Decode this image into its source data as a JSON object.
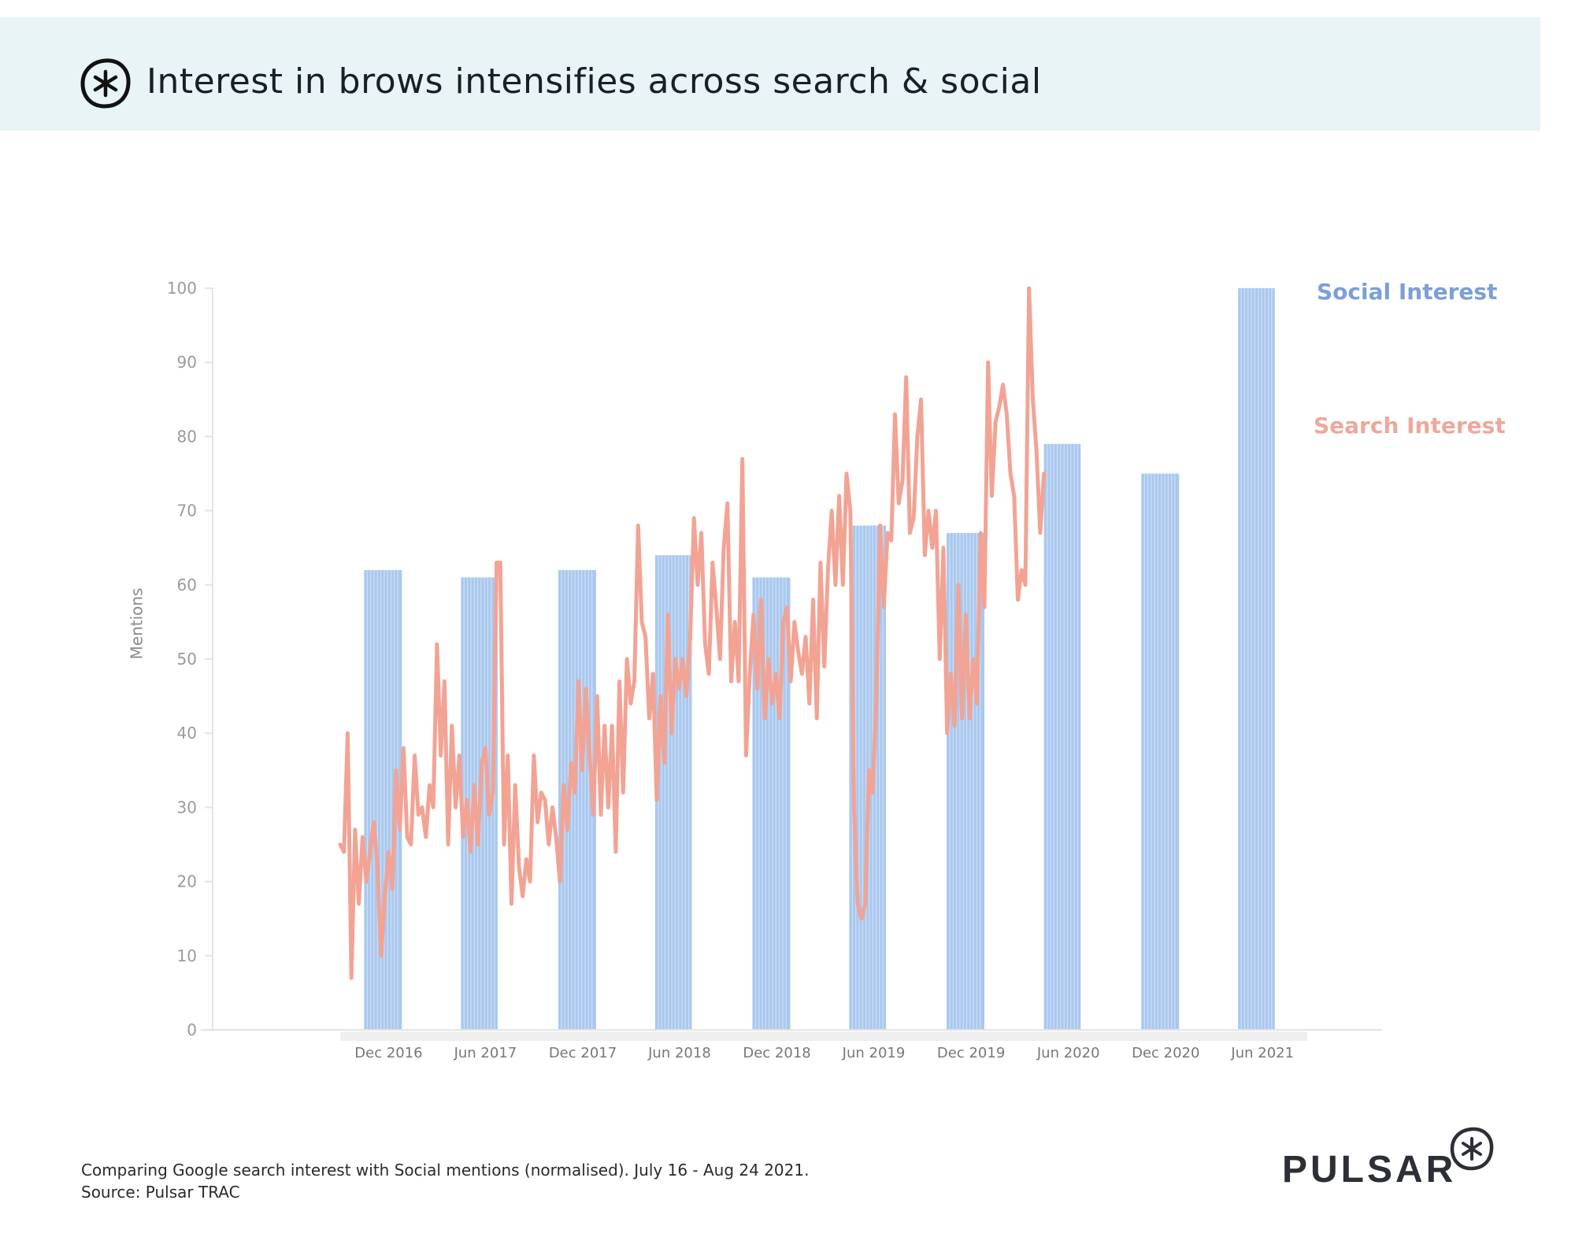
{
  "header": {
    "title": "Interest in brows intensifies across search & social",
    "logo_icon": "asterisk-circle-logo-icon"
  },
  "footer": {
    "note_line1": "Comparing Google search interest with Social mentions (normalised). July 16 - Aug 24 2021.",
    "note_line2": "Source: Pulsar TRAC",
    "brand": "PULSAR"
  },
  "colors": {
    "header_bg": "#e8f4f6",
    "social": "#a9c8ef",
    "social_label": "#7b9fd6",
    "search": "#f2a394",
    "axis_text": "#9a9a9a"
  },
  "chart_data": {
    "type": "bar",
    "ylabel": "Mentions",
    "ylim": [
      0,
      100
    ],
    "yticks": [
      "0",
      "10",
      "20",
      "30",
      "40",
      "50",
      "60",
      "70",
      "80",
      "90",
      "100"
    ],
    "x_range": [
      "2016-09-01",
      "2021-08-24"
    ],
    "x_tick_labels": [
      {
        "date": "2016-12-01",
        "label": "Dec 2016"
      },
      {
        "date": "2017-06-01",
        "label": "Jun 2017"
      },
      {
        "date": "2017-12-01",
        "label": "Dec 2017"
      },
      {
        "date": "2018-06-01",
        "label": "Jun 2018"
      },
      {
        "date": "2018-12-01",
        "label": "Dec 2018"
      },
      {
        "date": "2019-06-01",
        "label": "Jun 2019"
      },
      {
        "date": "2019-12-01",
        "label": "Dec 2019"
      },
      {
        "date": "2020-06-01",
        "label": "Jun 2020"
      },
      {
        "date": "2020-12-01",
        "label": "Dec 2020"
      },
      {
        "date": "2021-06-01",
        "label": "Jun 2021"
      }
    ],
    "legend_position": "top-right",
    "grid": false,
    "series": [
      {
        "name": "Social Interest",
        "type": "bar",
        "periods": [
          {
            "start": "2016-10-16",
            "end": "2016-12-26",
            "value": 62
          },
          {
            "start": "2017-04-16",
            "end": "2017-06-24",
            "value": 61
          },
          {
            "start": "2017-10-16",
            "end": "2017-12-26",
            "value": 62
          },
          {
            "start": "2018-04-16",
            "end": "2018-06-24",
            "value": 64
          },
          {
            "start": "2018-10-16",
            "end": "2018-12-26",
            "value": 61
          },
          {
            "start": "2019-04-16",
            "end": "2019-06-24",
            "value": 68
          },
          {
            "start": "2019-10-16",
            "end": "2019-12-26",
            "value": 67
          },
          {
            "start": "2020-04-16",
            "end": "2020-06-24",
            "value": 79
          },
          {
            "start": "2020-10-16",
            "end": "2020-12-26",
            "value": 75
          },
          {
            "start": "2021-04-16",
            "end": "2021-06-24",
            "value": 100
          }
        ]
      },
      {
        "name": "Search Interest",
        "type": "line",
        "points": [
          [
            "2016-09-01",
            25
          ],
          [
            "2016-09-08",
            24
          ],
          [
            "2016-09-15",
            40
          ],
          [
            "2016-09-22",
            7
          ],
          [
            "2016-09-29",
            27
          ],
          [
            "2016-10-06",
            17
          ],
          [
            "2016-10-13",
            26
          ],
          [
            "2016-10-20",
            20
          ],
          [
            "2016-10-27",
            24
          ],
          [
            "2016-11-03",
            28
          ],
          [
            "2016-11-10",
            22
          ],
          [
            "2016-11-17",
            10
          ],
          [
            "2016-11-24",
            18
          ],
          [
            "2016-12-01",
            24
          ],
          [
            "2016-12-08",
            19
          ],
          [
            "2016-12-15",
            35
          ],
          [
            "2016-12-22",
            27
          ],
          [
            "2016-12-29",
            38
          ],
          [
            "2017-01-05",
            26
          ],
          [
            "2017-01-12",
            25
          ],
          [
            "2017-01-19",
            37
          ],
          [
            "2017-01-26",
            29
          ],
          [
            "2017-02-02",
            30
          ],
          [
            "2017-02-09",
            26
          ],
          [
            "2017-02-16",
            33
          ],
          [
            "2017-02-23",
            30
          ],
          [
            "2017-03-02",
            52
          ],
          [
            "2017-03-09",
            37
          ],
          [
            "2017-03-16",
            47
          ],
          [
            "2017-03-23",
            25
          ],
          [
            "2017-03-30",
            41
          ],
          [
            "2017-04-06",
            30
          ],
          [
            "2017-04-13",
            37
          ],
          [
            "2017-04-20",
            26
          ],
          [
            "2017-04-27",
            31
          ],
          [
            "2017-05-04",
            24
          ],
          [
            "2017-05-11",
            33
          ],
          [
            "2017-05-18",
            25
          ],
          [
            "2017-05-25",
            36
          ],
          [
            "2017-06-01",
            38
          ],
          [
            "2017-06-08",
            29
          ],
          [
            "2017-06-15",
            32
          ],
          [
            "2017-06-22",
            63
          ],
          [
            "2017-06-29",
            63
          ],
          [
            "2017-07-06",
            25
          ],
          [
            "2017-07-13",
            37
          ],
          [
            "2017-07-20",
            17
          ],
          [
            "2017-07-27",
            33
          ],
          [
            "2017-08-03",
            22
          ],
          [
            "2017-08-10",
            18
          ],
          [
            "2017-08-17",
            23
          ],
          [
            "2017-08-24",
            20
          ],
          [
            "2017-08-31",
            37
          ],
          [
            "2017-09-07",
            28
          ],
          [
            "2017-09-14",
            32
          ],
          [
            "2017-09-21",
            31
          ],
          [
            "2017-09-28",
            25
          ],
          [
            "2017-10-05",
            30
          ],
          [
            "2017-10-12",
            26
          ],
          [
            "2017-10-19",
            20
          ],
          [
            "2017-10-26",
            33
          ],
          [
            "2017-11-02",
            27
          ],
          [
            "2017-11-09",
            36
          ],
          [
            "2017-11-16",
            32
          ],
          [
            "2017-11-23",
            47
          ],
          [
            "2017-11-30",
            35
          ],
          [
            "2017-12-07",
            46
          ],
          [
            "2017-12-14",
            37
          ],
          [
            "2017-12-21",
            29
          ],
          [
            "2017-12-28",
            45
          ],
          [
            "2018-01-04",
            29
          ],
          [
            "2018-01-11",
            41
          ],
          [
            "2018-01-18",
            30
          ],
          [
            "2018-01-25",
            41
          ],
          [
            "2018-02-01",
            24
          ],
          [
            "2018-02-08",
            47
          ],
          [
            "2018-02-15",
            32
          ],
          [
            "2018-02-22",
            50
          ],
          [
            "2018-03-01",
            44
          ],
          [
            "2018-03-08",
            47
          ],
          [
            "2018-03-15",
            68
          ],
          [
            "2018-03-22",
            55
          ],
          [
            "2018-03-29",
            53
          ],
          [
            "2018-04-05",
            42
          ],
          [
            "2018-04-12",
            48
          ],
          [
            "2018-04-19",
            31
          ],
          [
            "2018-04-26",
            45
          ],
          [
            "2018-05-03",
            36
          ],
          [
            "2018-05-10",
            56
          ],
          [
            "2018-05-17",
            40
          ],
          [
            "2018-05-24",
            50
          ],
          [
            "2018-05-31",
            46
          ],
          [
            "2018-06-07",
            50
          ],
          [
            "2018-06-14",
            45
          ],
          [
            "2018-06-21",
            53
          ],
          [
            "2018-06-28",
            69
          ],
          [
            "2018-07-05",
            60
          ],
          [
            "2018-07-12",
            67
          ],
          [
            "2018-07-19",
            52
          ],
          [
            "2018-07-26",
            48
          ],
          [
            "2018-08-02",
            63
          ],
          [
            "2018-08-09",
            57
          ],
          [
            "2018-08-16",
            50
          ],
          [
            "2018-08-23",
            65
          ],
          [
            "2018-08-30",
            71
          ],
          [
            "2018-09-06",
            47
          ],
          [
            "2018-09-13",
            55
          ],
          [
            "2018-09-20",
            47
          ],
          [
            "2018-09-27",
            77
          ],
          [
            "2018-10-04",
            37
          ],
          [
            "2018-10-11",
            48
          ],
          [
            "2018-10-18",
            56
          ],
          [
            "2018-10-25",
            46
          ],
          [
            "2018-11-01",
            58
          ],
          [
            "2018-11-08",
            42
          ],
          [
            "2018-11-15",
            50
          ],
          [
            "2018-11-22",
            44
          ],
          [
            "2018-11-29",
            48
          ],
          [
            "2018-12-06",
            42
          ],
          [
            "2018-12-13",
            55
          ],
          [
            "2018-12-20",
            57
          ],
          [
            "2018-12-27",
            47
          ],
          [
            "2019-01-03",
            55
          ],
          [
            "2019-01-10",
            51
          ],
          [
            "2019-01-17",
            48
          ],
          [
            "2019-01-24",
            53
          ],
          [
            "2019-01-31",
            44
          ],
          [
            "2019-02-07",
            58
          ],
          [
            "2019-02-14",
            42
          ],
          [
            "2019-02-21",
            63
          ],
          [
            "2019-02-28",
            49
          ],
          [
            "2019-03-07",
            62
          ],
          [
            "2019-03-14",
            70
          ],
          [
            "2019-03-21",
            60
          ],
          [
            "2019-03-28",
            72
          ],
          [
            "2019-04-04",
            60
          ],
          [
            "2019-04-11",
            75
          ],
          [
            "2019-04-18",
            70
          ],
          [
            "2019-04-25",
            30
          ],
          [
            "2019-05-02",
            17
          ],
          [
            "2019-05-09",
            15
          ],
          [
            "2019-05-16",
            17
          ],
          [
            "2019-05-23",
            35
          ],
          [
            "2019-05-30",
            32
          ],
          [
            "2019-06-06",
            45
          ],
          [
            "2019-06-13",
            68
          ],
          [
            "2019-06-20",
            57
          ],
          [
            "2019-06-27",
            67
          ],
          [
            "2019-07-04",
            66
          ],
          [
            "2019-07-11",
            83
          ],
          [
            "2019-07-18",
            71
          ],
          [
            "2019-07-25",
            74
          ],
          [
            "2019-08-01",
            88
          ],
          [
            "2019-08-08",
            67
          ],
          [
            "2019-08-15",
            69
          ],
          [
            "2019-08-22",
            80
          ],
          [
            "2019-08-29",
            85
          ],
          [
            "2019-09-05",
            64
          ],
          [
            "2019-09-12",
            70
          ],
          [
            "2019-09-19",
            65
          ],
          [
            "2019-09-26",
            70
          ],
          [
            "2019-10-03",
            50
          ],
          [
            "2019-10-10",
            65
          ],
          [
            "2019-10-17",
            40
          ],
          [
            "2019-10-24",
            48
          ],
          [
            "2019-10-31",
            41
          ],
          [
            "2019-11-07",
            60
          ],
          [
            "2019-11-14",
            42
          ],
          [
            "2019-11-21",
            56
          ],
          [
            "2019-11-28",
            42
          ],
          [
            "2019-12-05",
            50
          ],
          [
            "2019-12-12",
            44
          ],
          [
            "2019-12-19",
            67
          ],
          [
            "2019-12-26",
            57
          ],
          [
            "2020-01-02",
            90
          ],
          [
            "2020-01-09",
            72
          ],
          [
            "2020-01-16",
            82
          ],
          [
            "2020-01-23",
            84
          ],
          [
            "2020-01-30",
            87
          ],
          [
            "2020-02-06",
            83
          ],
          [
            "2020-02-13",
            75
          ],
          [
            "2020-02-20",
            72
          ],
          [
            "2020-02-27",
            58
          ],
          [
            "2020-03-05",
            62
          ],
          [
            "2020-03-12",
            60
          ],
          [
            "2020-03-19",
            100
          ],
          [
            "2020-03-26",
            85
          ],
          [
            "2020-04-02",
            78
          ],
          [
            "2020-04-09",
            67
          ],
          [
            "2020-04-16",
            75
          ]
        ]
      }
    ]
  }
}
